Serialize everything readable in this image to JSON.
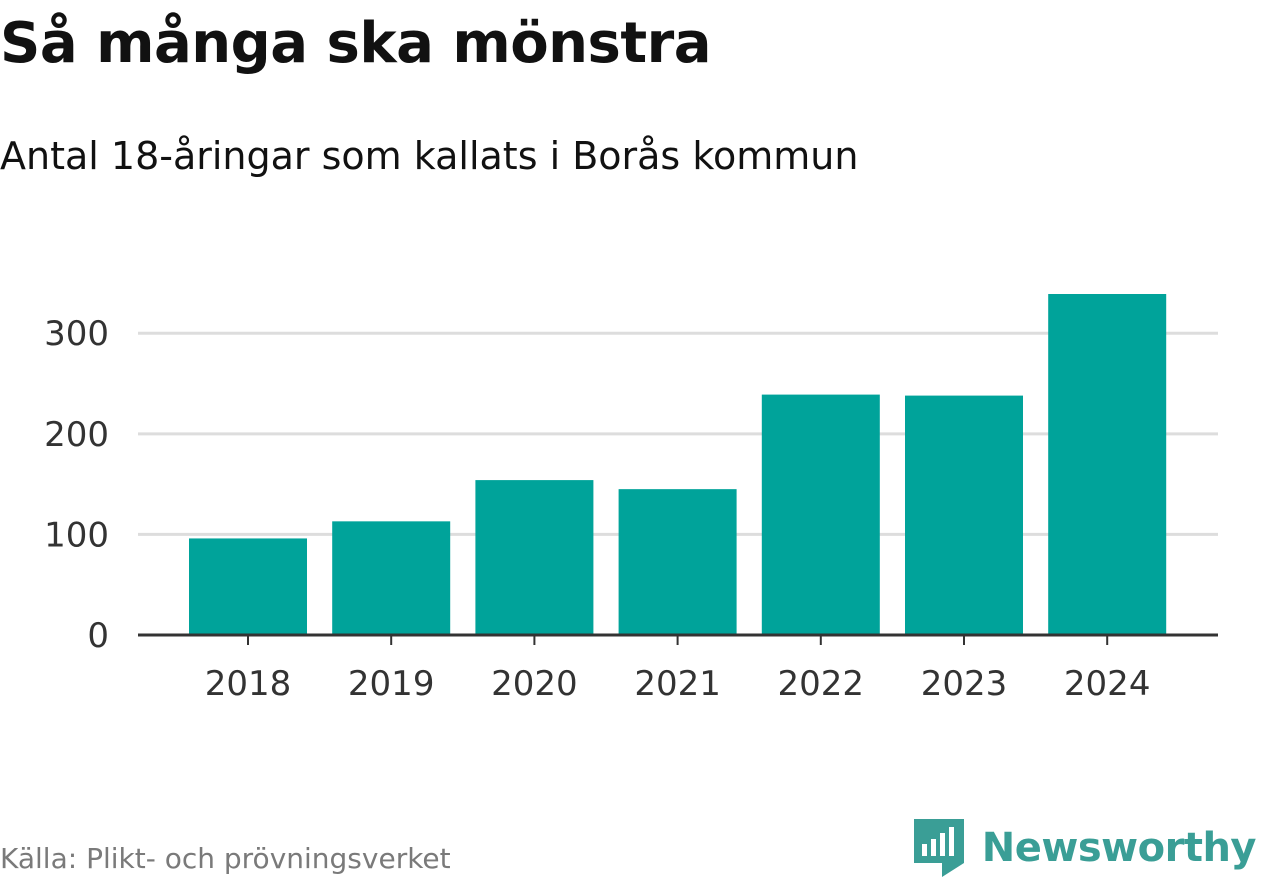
{
  "title": "Så många ska mönstra",
  "subtitle": "Antal 18-åringar som kallats i Borås kommun",
  "source": "Källa: Plikt- och prövningsverket",
  "brand": {
    "name": "Newsworthy",
    "color": "#3a9e96",
    "icon": "newsworthy-logo-icon"
  },
  "colors": {
    "bar": "#00a39a",
    "grid": "#dddddd",
    "axis": "#333333",
    "text": "#111111",
    "tick_text": "#333333",
    "source_text": "#7a7a7a"
  },
  "chart_data": {
    "type": "bar",
    "title": "Så många ska mönstra",
    "subtitle": "Antal 18-åringar som kallats i Borås kommun",
    "xlabel": "",
    "ylabel": "",
    "categories": [
      "2018",
      "2019",
      "2020",
      "2021",
      "2022",
      "2023",
      "2024"
    ],
    "values": [
      96,
      113,
      154,
      145,
      239,
      238,
      339
    ],
    "ylim": [
      0,
      340
    ],
    "yticks": [
      0,
      100,
      200,
      300
    ],
    "grid": true,
    "legend": "none"
  }
}
